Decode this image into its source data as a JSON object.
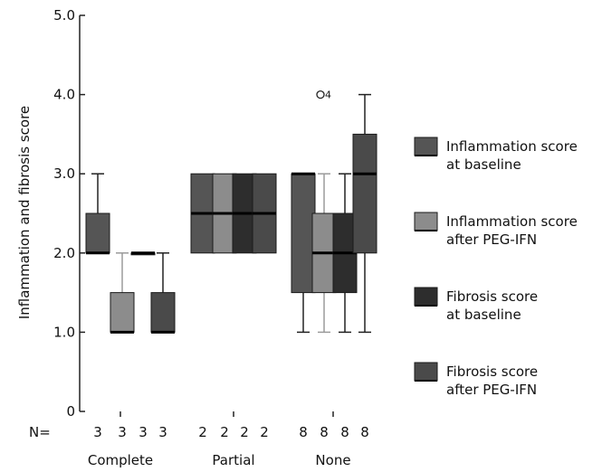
{
  "chart_data": {
    "type": "boxplot",
    "ylabel": "Inflammation and fibrosis score",
    "ylim": [
      0,
      5
    ],
    "yticks": [
      "0",
      "1.0",
      "2.0",
      "3.0",
      "4.0",
      "5.0"
    ],
    "n_prefix": "N=",
    "categories": [
      "Complete",
      "Partial",
      "None"
    ],
    "n": [
      [
        "3",
        "3",
        "3",
        "3"
      ],
      [
        "2",
        "2",
        "2",
        "2"
      ],
      [
        "8",
        "8",
        "8",
        "8"
      ]
    ],
    "series": [
      {
        "name": "Inflammation score at baseline",
        "legend_lines": [
          "Inflammation score",
          "at baseline"
        ],
        "color": "#555555"
      },
      {
        "name": "Inflammation score after PEG-IFN",
        "legend_lines": [
          "Inflammation score",
          "after PEG-IFN"
        ],
        "color": "#8c8c8c"
      },
      {
        "name": "Fibrosis score at baseline",
        "legend_lines": [
          "Fibrosis score",
          "at baseline"
        ],
        "color": "#2d2d2d"
      },
      {
        "name": "Fibrosis score after PEG-IFN",
        "legend_lines": [
          "Fibrosis score",
          "after PEG-IFN"
        ],
        "color": "#4a4a4a"
      }
    ],
    "boxes": [
      [
        {
          "min": 2.0,
          "q1": 2.0,
          "median": 2.0,
          "q3": 2.5,
          "max": 3.0
        },
        {
          "min": 1.0,
          "q1": 1.0,
          "median": 1.0,
          "q3": 1.5,
          "max": 2.0
        },
        {
          "min": 2.0,
          "q1": 2.0,
          "median": 2.0,
          "q3": 2.0,
          "max": 2.0
        },
        {
          "min": 1.0,
          "q1": 1.0,
          "median": 1.0,
          "q3": 1.5,
          "max": 2.0
        }
      ],
      [
        {
          "min": 2.0,
          "q1": 2.0,
          "median": 2.5,
          "q3": 3.0,
          "max": 3.0
        },
        {
          "min": 2.0,
          "q1": 2.0,
          "median": 2.5,
          "q3": 3.0,
          "max": 3.0
        },
        {
          "min": 2.0,
          "q1": 2.0,
          "median": 2.5,
          "q3": 3.0,
          "max": 3.0
        },
        {
          "min": 2.0,
          "q1": 2.0,
          "median": 2.5,
          "q3": 3.0,
          "max": 3.0
        }
      ],
      [
        {
          "min": 1.0,
          "q1": 1.5,
          "median": 3.0,
          "q3": 3.0,
          "max": 3.0
        },
        {
          "min": 1.0,
          "q1": 1.5,
          "median": 2.0,
          "q3": 2.5,
          "max": 3.0
        },
        {
          "min": 1.0,
          "q1": 1.5,
          "median": 2.0,
          "q3": 2.5,
          "max": 3.0
        },
        {
          "min": 1.0,
          "q1": 2.0,
          "median": 3.0,
          "q3": 3.5,
          "max": 4.0
        }
      ]
    ],
    "outliers": [
      {
        "category": "None",
        "series": "Inflammation score after PEG-IFN",
        "value": 4.0,
        "label": "4"
      }
    ],
    "grid": false,
    "legend_position": "right"
  }
}
